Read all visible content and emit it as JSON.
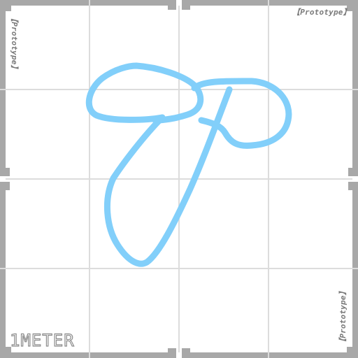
{
  "texture": {
    "watermark_text": "【Prototype】",
    "scale_label": "1METER",
    "colors": {
      "background": "#ffffff",
      "border": "#a8a8a8",
      "grid_line": "#dcdcdc",
      "label": "#7a7a7a",
      "scribble": "#82cffa"
    }
  }
}
